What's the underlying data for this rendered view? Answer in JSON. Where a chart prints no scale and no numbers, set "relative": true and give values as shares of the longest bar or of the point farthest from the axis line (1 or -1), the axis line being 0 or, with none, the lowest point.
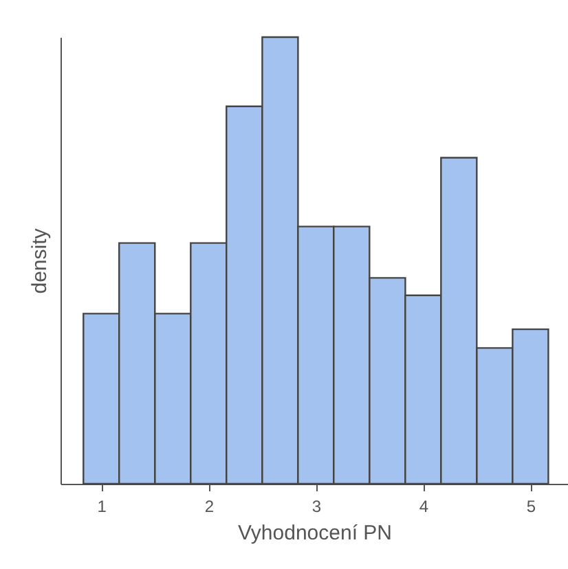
{
  "chart_data": {
    "type": "bar",
    "xlabel": "Vyhodnocení PN",
    "ylabel": "density",
    "relative": true,
    "x": [
      1,
      1.333,
      1.667,
      2,
      2.333,
      2.667,
      3,
      3.333,
      3.667,
      4,
      4.333,
      4.667,
      5
    ],
    "values": [
      0.381,
      0.539,
      0.381,
      0.539,
      0.845,
      1,
      0.576,
      0.576,
      0.461,
      0.422,
      0.73,
      0.304,
      0.346
    ],
    "color": "#a4c2f0",
    "xlim": [
      0.62,
      5.35
    ],
    "xticks": [
      1,
      2,
      3,
      4,
      5
    ]
  }
}
